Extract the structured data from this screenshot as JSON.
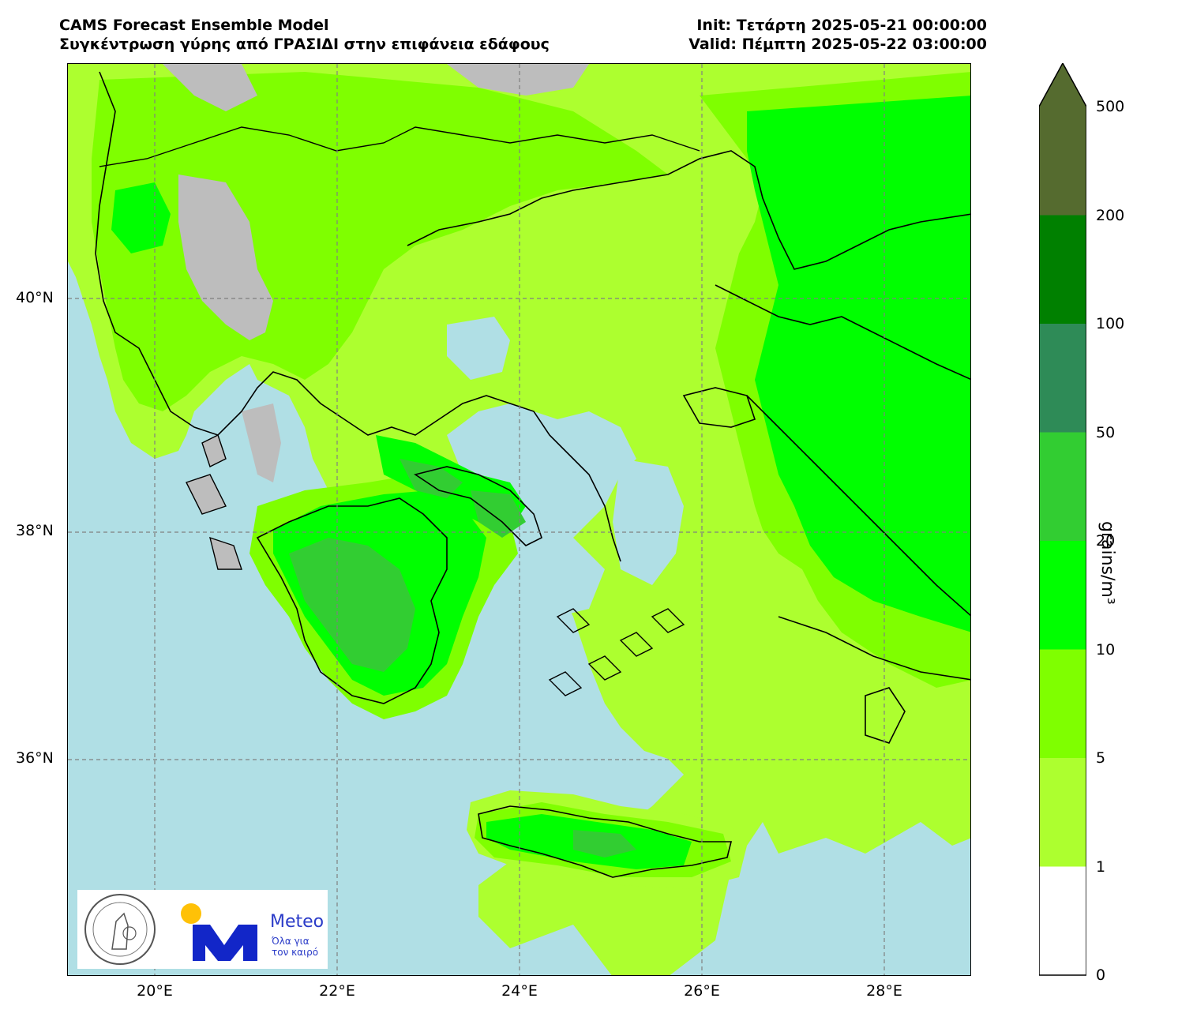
{
  "header": {
    "model_title": "CAMS Forecast Ensemble Model",
    "subtitle": "Συγκέντρωση γύρης από ΓΡΑΣΙΔΙ στην επιφάνεια εδάφους",
    "init": "Init: Τετάρτη 2025-05-21 00:00:00",
    "valid": "Valid: Πέμπτη 2025-05-22 03:00:00"
  },
  "map": {
    "lat_labels": [
      "40°N",
      "38°N",
      "36°N"
    ],
    "lon_labels": [
      "20°E",
      "22°E",
      "24°E",
      "26°E",
      "28°E"
    ],
    "sea_color": "#b0dfe5",
    "nodata_color": "#bdbdbd"
  },
  "logos": {
    "observatory_icon": "observatory-seal-icon",
    "meteo_name": "Meteo",
    "meteo_tagline_1": "Όλα για",
    "meteo_tagline_2": "τον καιρό"
  },
  "colorbar": {
    "unit_label": "grains/m³",
    "ticks": [
      "0",
      "1",
      "5",
      "10",
      "20",
      "50",
      "100",
      "200",
      "500"
    ],
    "colors": [
      "#ffffff",
      "#adff2f",
      "#7fff00",
      "#00ff00",
      "#32cd32",
      "#2e8b57",
      "#008000",
      "#006400",
      "#556b2f"
    ]
  }
}
